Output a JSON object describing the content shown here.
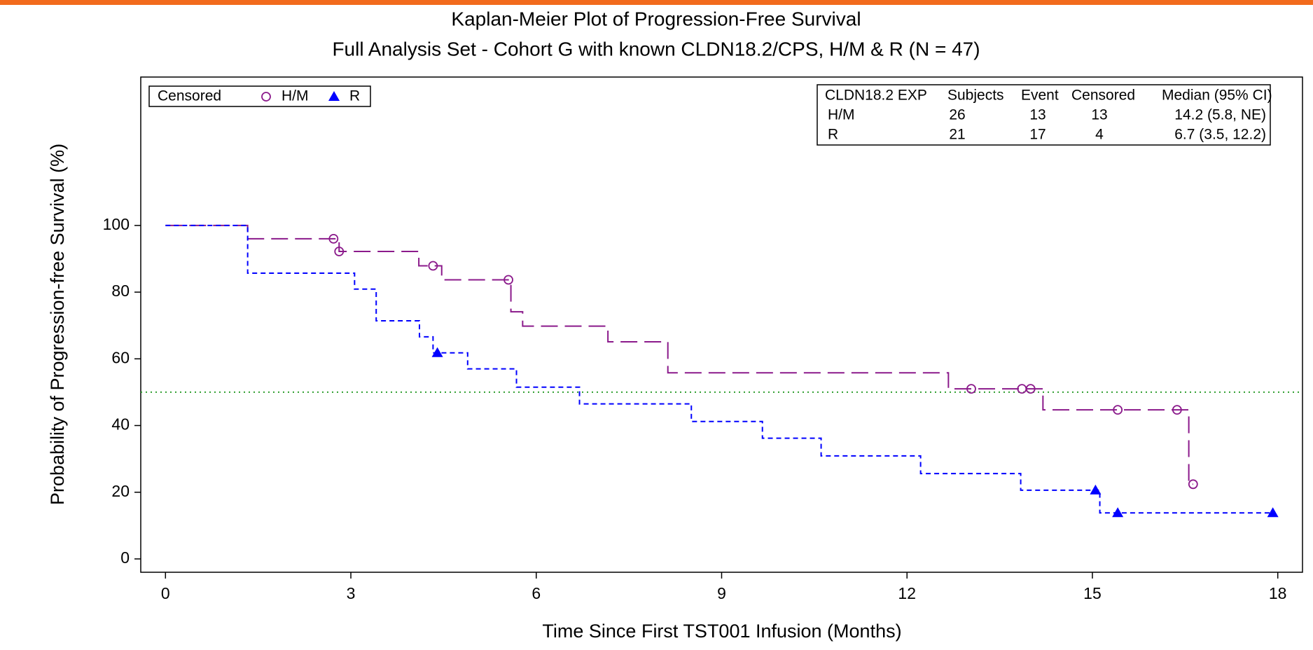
{
  "chart_data": {
    "type": "step",
    "title": "Kaplan-Meier Plot of Progression-Free Survival",
    "subtitle": "Full Analysis Set - Cohort G with known CLDN18.2/CPS, H/M & R  (N = 47)",
    "x_label": "Time Since First TST001 Infusion (Months)",
    "y_label": "Probability of Progression-free Survival (%)",
    "xlim": [
      -0.4,
      18.4
    ],
    "ylim": [
      -4,
      144.5
    ],
    "xticks": [
      0,
      3,
      6,
      9,
      12,
      15,
      18
    ],
    "yticks": [
      0,
      20,
      40,
      60,
      80,
      100
    ],
    "reference_line": 50,
    "reference_color": "#2e9e2e",
    "legend_title": "Censored",
    "series": [
      {
        "name": "H/M",
        "color": "#8b1a8b",
        "dash": "24 10",
        "marker": "circle",
        "x": [
          0,
          1.33,
          2.81,
          4.1,
          4.47,
          5.59,
          5.78,
          7.16,
          8.13,
          12.67,
          14.2,
          16.56,
          16.63
        ],
        "values": [
          100,
          96,
          92.2,
          87.9,
          83.7,
          74.1,
          69.8,
          65.1,
          55.8,
          51,
          44.7,
          22.4,
          22.4
        ],
        "censor_x": [
          2.72,
          2.81,
          4.33,
          5.55,
          13.04,
          13.86,
          14.0,
          15.41,
          16.37,
          16.63
        ],
        "censor_values": [
          96,
          92.2,
          87.9,
          83.7,
          51,
          51,
          51,
          44.7,
          44.7,
          22.4
        ]
      },
      {
        "name": "R",
        "color": "#0000ff",
        "dash": "7 5",
        "marker": "triangle",
        "x": [
          0,
          1.33,
          3.06,
          3.41,
          4.11,
          4.33,
          4.89,
          5.68,
          6.7,
          8.51,
          9.66,
          10.61,
          12.22,
          13.84,
          15.12,
          17.92
        ],
        "values": [
          100,
          85.7,
          80.9,
          71.4,
          66.6,
          61.8,
          57,
          51.5,
          46.5,
          41.2,
          36.2,
          30.9,
          25.6,
          20.6,
          13.8,
          13.8
        ],
        "censor_x": [
          4.4,
          15.05,
          15.41,
          17.92
        ],
        "censor_values": [
          61.8,
          20.6,
          13.8,
          13.8
        ]
      }
    ],
    "table": {
      "header": [
        "CLDN18.2 EXP",
        "Subjects",
        "Event",
        "Censored",
        "Median (95% CI)"
      ],
      "rows": [
        [
          "H/M",
          26,
          13,
          13,
          "14.2 (5.8, NE)"
        ],
        [
          "R",
          21,
          17,
          4,
          "6.7 (3.5, 12.2)"
        ]
      ]
    }
  }
}
